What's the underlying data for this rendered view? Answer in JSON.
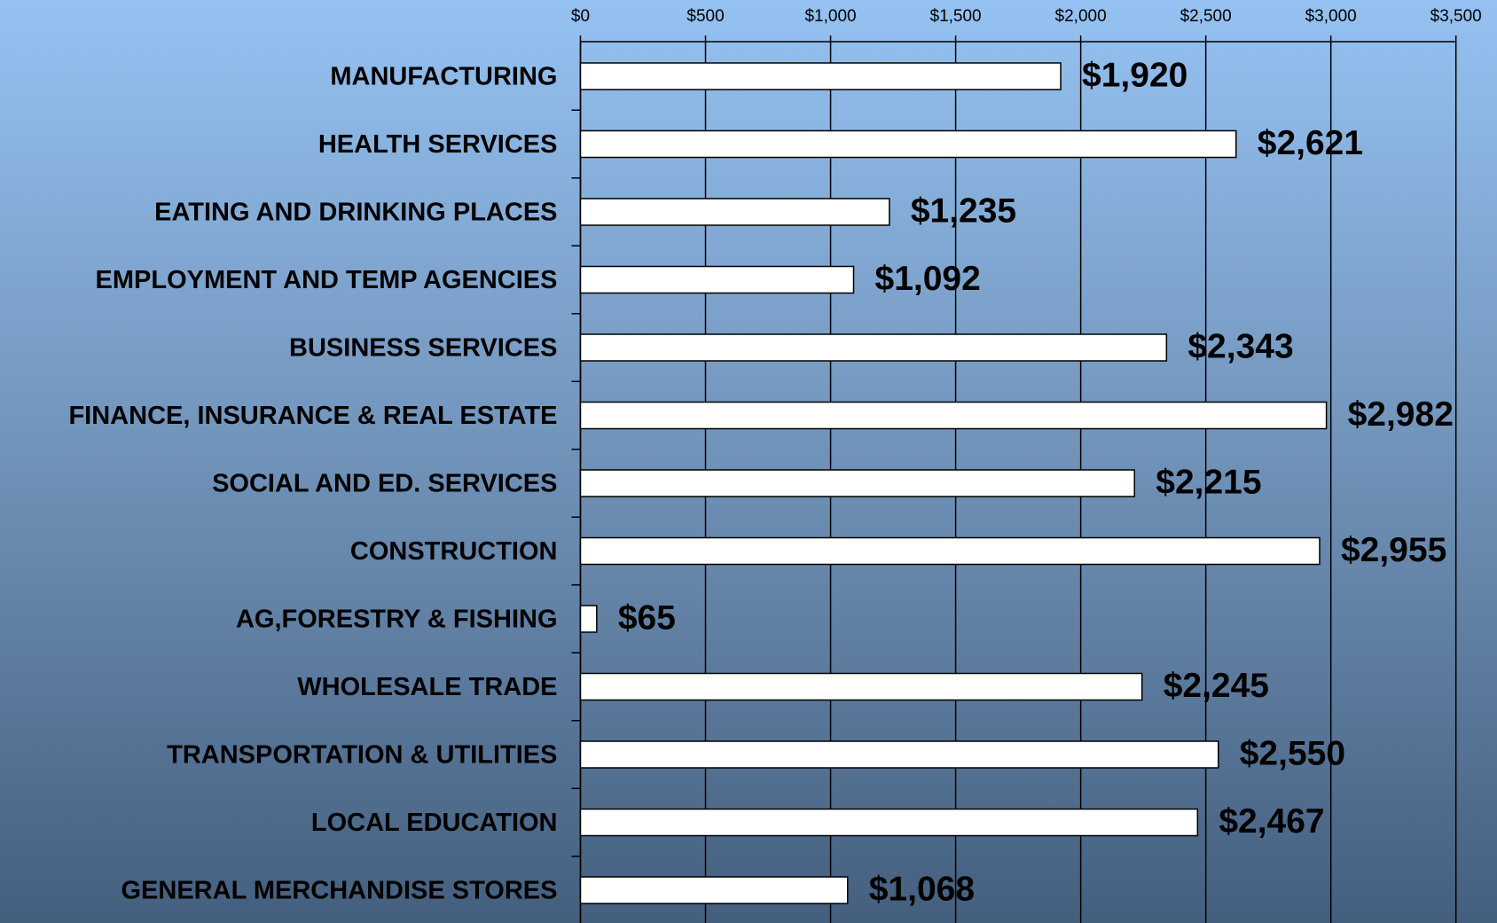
{
  "chart_data": {
    "type": "bar",
    "orientation": "horizontal",
    "categories": [
      "MANUFACTURING",
      "HEALTH SERVICES",
      "EATING AND DRINKING PLACES",
      "EMPLOYMENT AND TEMP AGENCIES",
      "BUSINESS SERVICES",
      "FINANCE, INSURANCE & REAL ESTATE",
      "SOCIAL AND ED. SERVICES",
      "CONSTRUCTION",
      "AG,FORESTRY & FISHING",
      "WHOLESALE TRADE",
      "TRANSPORTATION & UTILITIES",
      "LOCAL EDUCATION",
      "GENERAL MERCHANDISE STORES"
    ],
    "values": [
      1920,
      2621,
      1235,
      1092,
      2343,
      2982,
      2215,
      2955,
      65,
      2245,
      2550,
      2467,
      1068
    ],
    "value_labels": [
      "$1,920",
      "$2,621",
      "$1,235",
      "$1,092",
      "$2,343",
      "$2,982",
      "$2,215",
      "$2,955",
      "$65",
      "$2,245",
      "$2,550",
      "$2,467",
      "$1,068"
    ],
    "color": "#ffffff",
    "xlim": [
      0,
      3500
    ],
    "xticks": [
      {
        "value": 0,
        "label": "$0"
      },
      {
        "value": 500,
        "label": "$500"
      },
      {
        "value": 1000,
        "label": "$1,000"
      },
      {
        "value": 1500,
        "label": "$1,500"
      },
      {
        "value": 2000,
        "label": "$2,000"
      },
      {
        "value": 2500,
        "label": "$2,500"
      },
      {
        "value": 3000,
        "label": "$3,000"
      },
      {
        "value": 3500,
        "label": "$3,500"
      }
    ],
    "grid": true
  }
}
